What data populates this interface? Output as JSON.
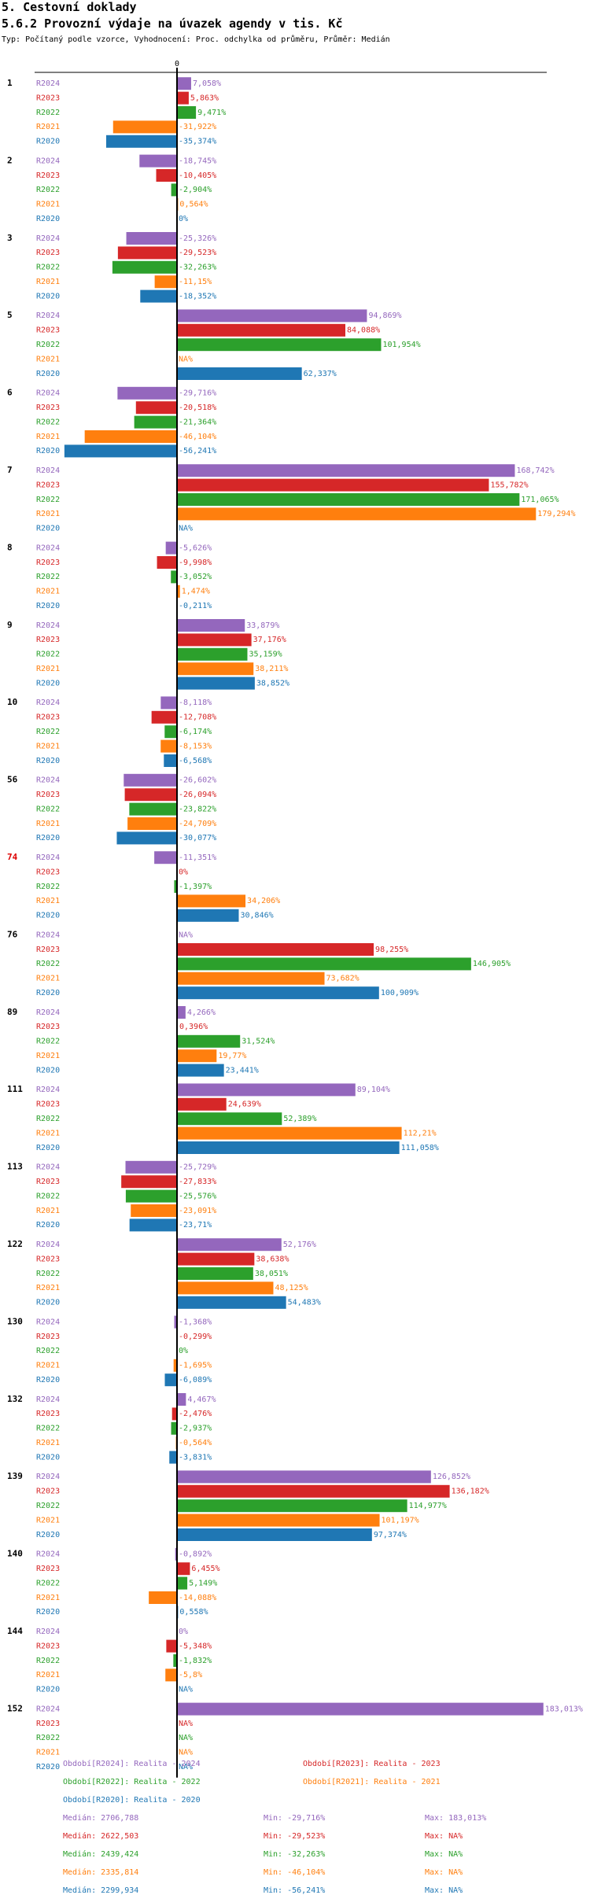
{
  "header": {
    "section": "5. Cestovní doklady",
    "subtitle": "5.6.2 Provozní výdaje na úvazek agendy v tis. Kč",
    "typ": "Typ: Počítaný podle vzorce, Vyhodnocení: Proc. odchylka od průměru, Průměr: Medián"
  },
  "colors": {
    "R2024": "#9467bd",
    "R2023": "#d62728",
    "R2022": "#2ca02c",
    "R2021": "#ff7f0e",
    "R2020": "#1f77b4",
    "highlight": "#dd0000"
  },
  "chart_data": {
    "type": "bar",
    "orientation": "horizontal",
    "axis_zero_label": "0",
    "unit": "%",
    "series_names": [
      "R2024",
      "R2023",
      "R2022",
      "R2021",
      "R2020"
    ],
    "groups": [
      {
        "label": "1",
        "highlight": false,
        "values": [
          7.058,
          5.863,
          9.471,
          -31.922,
          -35.374
        ],
        "labels": [
          "7,058%",
          "5,863%",
          "9,471%",
          "-31,922%",
          "-35,374%"
        ]
      },
      {
        "label": "2",
        "highlight": false,
        "values": [
          -18.745,
          -10.405,
          -2.904,
          0.564,
          0
        ],
        "labels": [
          "-18,745%",
          "-10,405%",
          "-2,904%",
          "0,564%",
          "0%"
        ]
      },
      {
        "label": "3",
        "highlight": false,
        "values": [
          -25.326,
          -29.523,
          -32.263,
          -11.15,
          -18.352
        ],
        "labels": [
          "-25,326%",
          "-29,523%",
          "-32,263%",
          "-11,15%",
          "-18,352%"
        ]
      },
      {
        "label": "5",
        "highlight": false,
        "values": [
          94.869,
          84.088,
          101.954,
          null,
          62.337
        ],
        "labels": [
          "94,869%",
          "84,088%",
          "101,954%",
          "NA%",
          "62,337%"
        ]
      },
      {
        "label": "6",
        "highlight": false,
        "values": [
          -29.716,
          -20.518,
          -21.364,
          -46.104,
          -56.241
        ],
        "labels": [
          "-29,716%",
          "-20,518%",
          "-21,364%",
          "-46,104%",
          "-56,241%"
        ]
      },
      {
        "label": "7",
        "highlight": false,
        "values": [
          168.742,
          155.782,
          171.065,
          179.294,
          null
        ],
        "labels": [
          "168,742%",
          "155,782%",
          "171,065%",
          "179,294%",
          "NA%"
        ]
      },
      {
        "label": "8",
        "highlight": false,
        "values": [
          -5.626,
          -9.998,
          -3.052,
          1.474,
          -0.211
        ],
        "labels": [
          "-5,626%",
          "-9,998%",
          "-3,052%",
          "1,474%",
          "-0,211%"
        ]
      },
      {
        "label": "9",
        "highlight": false,
        "values": [
          33.879,
          37.176,
          35.159,
          38.211,
          38.852
        ],
        "labels": [
          "33,879%",
          "37,176%",
          "35,159%",
          "38,211%",
          "38,852%"
        ]
      },
      {
        "label": "10",
        "highlight": false,
        "values": [
          -8.118,
          -12.708,
          -6.174,
          -8.153,
          -6.568
        ],
        "labels": [
          "-8,118%",
          "-12,708%",
          "-6,174%",
          "-8,153%",
          "-6,568%"
        ]
      },
      {
        "label": "56",
        "highlight": false,
        "values": [
          -26.602,
          -26.094,
          -23.822,
          -24.709,
          -30.077
        ],
        "labels": [
          "-26,602%",
          "-26,094%",
          "-23,822%",
          "-24,709%",
          "-30,077%"
        ]
      },
      {
        "label": "74",
        "highlight": true,
        "values": [
          -11.351,
          0,
          -1.397,
          34.206,
          30.846
        ],
        "labels": [
          "-11,351%",
          "0%",
          "-1,397%",
          "34,206%",
          "30,846%"
        ]
      },
      {
        "label": "76",
        "highlight": false,
        "values": [
          null,
          98.255,
          146.905,
          73.682,
          100.909
        ],
        "labels": [
          "NA%",
          "98,255%",
          "146,905%",
          "73,682%",
          "100,909%"
        ]
      },
      {
        "label": "89",
        "highlight": false,
        "values": [
          4.266,
          0.396,
          31.524,
          19.77,
          23.441
        ],
        "labels": [
          "4,266%",
          "0,396%",
          "31,524%",
          "19,77%",
          "23,441%"
        ]
      },
      {
        "label": "111",
        "highlight": false,
        "values": [
          89.104,
          24.639,
          52.389,
          112.21,
          111.058
        ],
        "labels": [
          "89,104%",
          "24,639%",
          "52,389%",
          "112,21%",
          "111,058%"
        ]
      },
      {
        "label": "113",
        "highlight": false,
        "values": [
          -25.729,
          -27.833,
          -25.576,
          -23.091,
          -23.71
        ],
        "labels": [
          "-25,729%",
          "-27,833%",
          "-25,576%",
          "-23,091%",
          "-23,71%"
        ]
      },
      {
        "label": "122",
        "highlight": false,
        "values": [
          52.176,
          38.638,
          38.051,
          48.125,
          54.483
        ],
        "labels": [
          "52,176%",
          "38,638%",
          "38,051%",
          "48,125%",
          "54,483%"
        ]
      },
      {
        "label": "130",
        "highlight": false,
        "values": [
          -1.368,
          -0.299,
          0,
          -1.695,
          -6.089
        ],
        "labels": [
          "-1,368%",
          "-0,299%",
          "0%",
          "-1,695%",
          "-6,089%"
        ]
      },
      {
        "label": "132",
        "highlight": false,
        "values": [
          4.467,
          -2.476,
          -2.937,
          -0.564,
          -3.831
        ],
        "labels": [
          "4,467%",
          "-2,476%",
          "-2,937%",
          "-0,564%",
          "-3,831%"
        ]
      },
      {
        "label": "139",
        "highlight": false,
        "values": [
          126.852,
          136.182,
          114.977,
          101.197,
          97.374
        ],
        "labels": [
          "126,852%",
          "136,182%",
          "114,977%",
          "101,197%",
          "97,374%"
        ]
      },
      {
        "label": "140",
        "highlight": false,
        "values": [
          -0.892,
          6.455,
          5.149,
          -14.088,
          0.558
        ],
        "labels": [
          "-0,892%",
          "6,455%",
          "5,149%",
          "-14,088%",
          "0,558%"
        ]
      },
      {
        "label": "144",
        "highlight": false,
        "values": [
          0,
          -5.348,
          -1.832,
          -5.8,
          null
        ],
        "labels": [
          "0%",
          "-5,348%",
          "-1,832%",
          "-5,8%",
          "NA%"
        ]
      },
      {
        "label": "152",
        "highlight": false,
        "values": [
          183.013,
          null,
          null,
          null,
          null
        ],
        "labels": [
          "183,013%",
          "NA%",
          "NA%",
          "NA%",
          "NA%"
        ]
      }
    ]
  },
  "legend": {
    "periods": [
      {
        "series": "R2024",
        "text": "Období[R2024]: Realita - 2024"
      },
      {
        "series": "R2023",
        "text": "Období[R2023]: Realita - 2023"
      },
      {
        "series": "R2022",
        "text": "Období[R2022]: Realita - 2022"
      },
      {
        "series": "R2021",
        "text": "Období[R2021]: Realita - 2021"
      },
      {
        "series": "R2020",
        "text": "Období[R2020]: Realita - 2020"
      }
    ],
    "stats": [
      {
        "series": "R2024",
        "median": "Medián: 2706,788",
        "min": "Min: -29,716%",
        "max": "Max: 183,013%"
      },
      {
        "series": "R2023",
        "median": "Medián: 2622,503",
        "min": "Min: -29,523%",
        "max": "Max: NA%"
      },
      {
        "series": "R2022",
        "median": "Medián: 2439,424",
        "min": "Min: -32,263%",
        "max": "Max: NA%"
      },
      {
        "series": "R2021",
        "median": "Medián: 2335,814",
        "min": "Min: -46,104%",
        "max": "Max: NA%"
      },
      {
        "series": "R2020",
        "median": "Medián: 2299,934",
        "min": "Min: -56,241%",
        "max": "Max: NA%"
      }
    ]
  }
}
